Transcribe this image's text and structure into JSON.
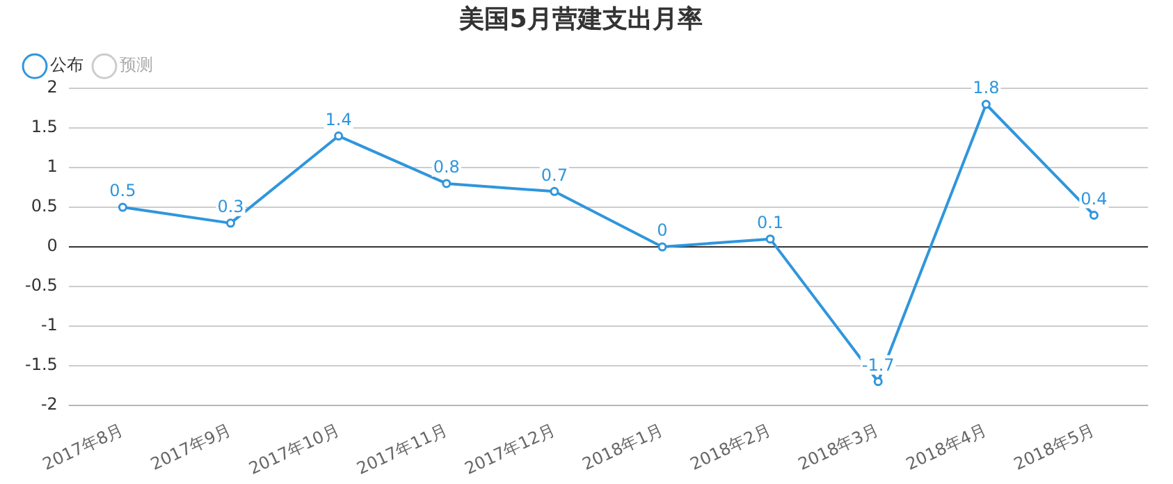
{
  "chart_data": {
    "type": "line",
    "title": "美国5月营建支出月率",
    "categories": [
      "2017年8月",
      "2017年9月",
      "2017年10月",
      "2017年11月",
      "2017年12月",
      "2018年1月",
      "2018年2月",
      "2018年3月",
      "2018年4月",
      "2018年5月"
    ],
    "series": [
      {
        "name": "公布",
        "color": "#2f96dc",
        "values": [
          0.5,
          0.3,
          1.4,
          0.8,
          0.7,
          0,
          0.1,
          -1.7,
          1.8,
          0.4
        ]
      },
      {
        "name": "预测",
        "color": "#cccccc",
        "values": [
          null,
          null,
          null,
          null,
          null,
          null,
          null,
          null,
          null,
          null
        ]
      }
    ],
    "ylim": [
      -2,
      2
    ],
    "yticks": [
      -2,
      -1.5,
      -1,
      -0.5,
      0,
      0.5,
      1,
      1.5,
      2
    ],
    "grid": "y",
    "legend": "top left",
    "marker": "circle",
    "line_style": "solid",
    "data_labels": true
  }
}
